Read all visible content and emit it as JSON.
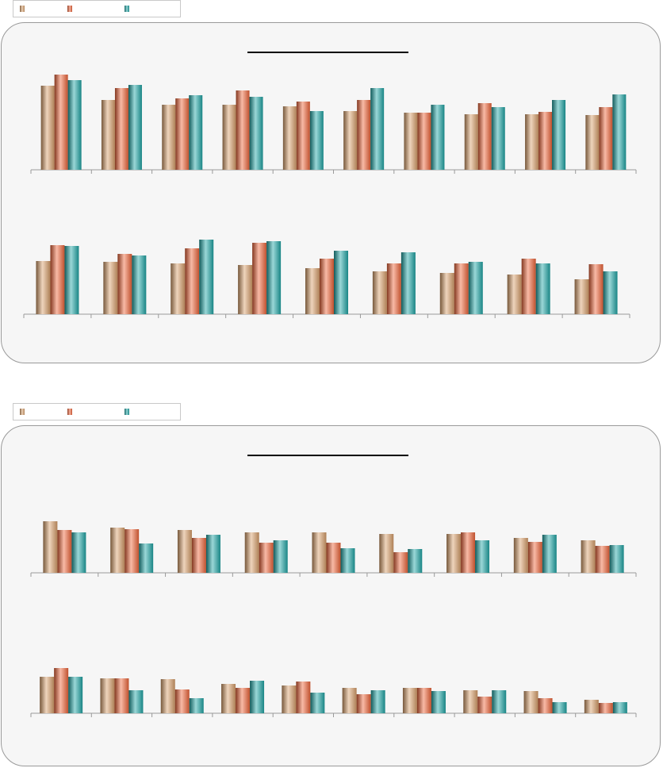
{
  "colors": {
    "series": [
      "#d9a06b",
      "#f0653a",
      "#1fa6a6"
    ],
    "axis": "#9a9a9a",
    "panel_bg": "#f6f6f6",
    "title_line": "#000000"
  },
  "legend_top": {
    "series": [
      {
        "name": ""
      },
      {
        "name": ""
      },
      {
        "name": ""
      }
    ]
  },
  "legend_bottom": {
    "series": [
      {
        "name": ""
      },
      {
        "name": ""
      },
      {
        "name": ""
      }
    ]
  },
  "chart_data": [
    {
      "type": "bar",
      "title": "",
      "grid": false,
      "groups": 10,
      "values": [
        [
          106,
          120,
          113
        ],
        [
          88,
          103,
          107
        ],
        [
          82,
          90,
          94
        ],
        [
          82,
          100,
          92
        ],
        [
          80,
          86,
          74
        ],
        [
          74,
          88,
          103
        ],
        [
          72,
          72,
          82
        ],
        [
          70,
          84,
          79
        ],
        [
          70,
          73,
          88
        ],
        [
          69,
          79,
          95
        ]
      ]
    },
    {
      "type": "bar",
      "title": "",
      "grid": false,
      "groups": 9,
      "values": [
        [
          67,
          87,
          86
        ],
        [
          66,
          76,
          74
        ],
        [
          64,
          83,
          94
        ],
        [
          62,
          90,
          92
        ],
        [
          58,
          70,
          80
        ],
        [
          54,
          64,
          78
        ],
        [
          52,
          64,
          66
        ],
        [
          50,
          70,
          64
        ],
        [
          44,
          63,
          54
        ]
      ]
    },
    {
      "type": "bar",
      "title": "",
      "grid": false,
      "groups": 9,
      "values": [
        [
          65,
          54,
          51
        ],
        [
          57,
          55,
          37
        ],
        [
          54,
          44,
          48
        ],
        [
          51,
          38,
          41
        ],
        [
          51,
          38,
          31
        ],
        [
          49,
          26,
          30
        ],
        [
          49,
          51,
          41
        ],
        [
          44,
          39,
          48
        ],
        [
          41,
          34,
          35
        ]
      ]
    },
    {
      "type": "bar",
      "title": "",
      "grid": false,
      "groups": 10,
      "values": [
        [
          46,
          57,
          46
        ],
        [
          44,
          44,
          29
        ],
        [
          43,
          30,
          19
        ],
        [
          37,
          32,
          41
        ],
        [
          35,
          40,
          26
        ],
        [
          32,
          24,
          29
        ],
        [
          32,
          32,
          28
        ],
        [
          29,
          21,
          29
        ],
        [
          28,
          19,
          14
        ],
        [
          17,
          13,
          14
        ]
      ]
    }
  ]
}
